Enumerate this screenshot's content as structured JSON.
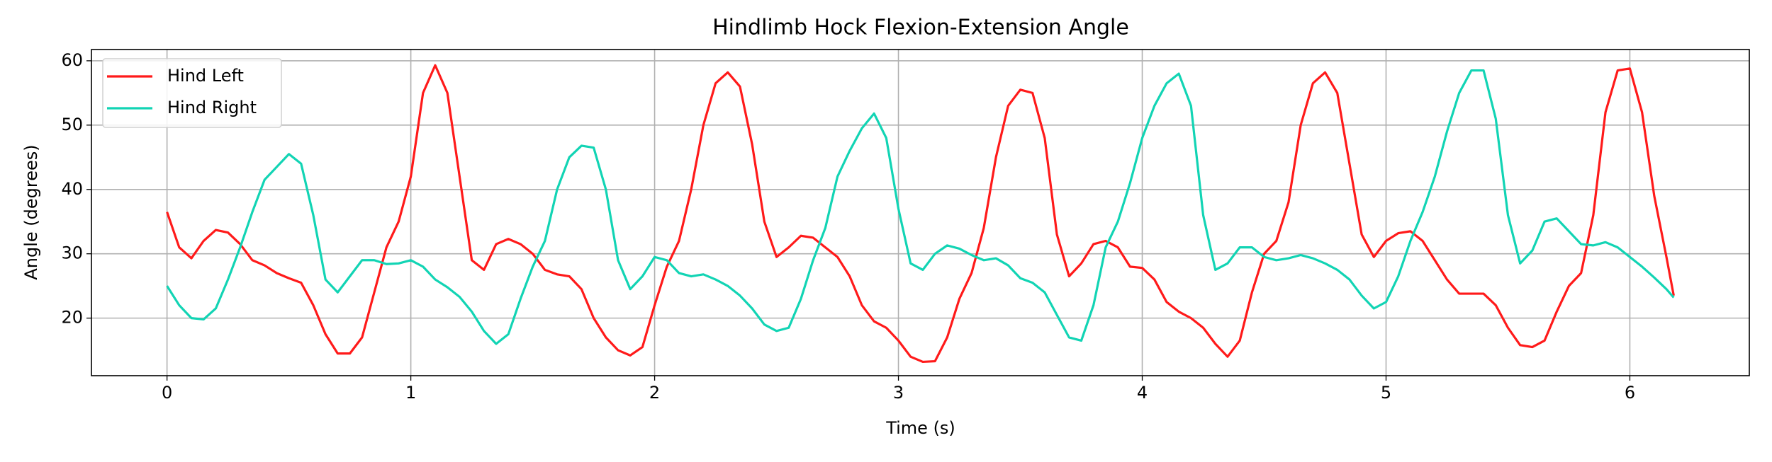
{
  "chart_data": {
    "type": "line",
    "title": "Hindlimb Hock Flexion-Extension Angle",
    "x_label": "Time (s)",
    "y_label": "Angle (degrees)",
    "x": [
      0,
      0.05,
      0.1,
      0.15,
      0.2,
      0.25,
      0.3,
      0.35,
      0.4,
      0.45,
      0.5,
      0.55,
      0.6,
      0.65,
      0.7,
      0.75,
      0.8,
      0.85,
      0.9,
      0.95,
      1.0,
      1.05,
      1.1,
      1.15,
      1.2,
      1.25,
      1.3,
      1.35,
      1.4,
      1.45,
      1.5,
      1.55,
      1.6,
      1.65,
      1.7,
      1.75,
      1.8,
      1.85,
      1.9,
      1.95,
      2.0,
      2.05,
      2.1,
      2.15,
      2.2,
      2.25,
      2.3,
      2.35,
      2.4,
      2.45,
      2.5,
      2.55,
      2.6,
      2.65,
      2.7,
      2.75,
      2.8,
      2.85,
      2.9,
      2.95,
      3.0,
      3.05,
      3.1,
      3.15,
      3.2,
      3.25,
      3.3,
      3.35,
      3.4,
      3.45,
      3.5,
      3.55,
      3.6,
      3.65,
      3.7,
      3.75,
      3.8,
      3.85,
      3.9,
      3.95,
      4.0,
      4.05,
      4.1,
      4.15,
      4.2,
      4.25,
      4.3,
      4.35,
      4.4,
      4.45,
      4.5,
      4.55,
      4.6,
      4.65,
      4.7,
      4.75,
      4.8,
      4.85,
      4.9,
      4.95,
      5.0,
      5.05,
      5.1,
      5.15,
      5.2,
      5.25,
      5.3,
      5.35,
      5.4,
      5.45,
      5.5,
      5.55,
      5.6,
      5.65,
      5.7,
      5.75,
      5.8,
      5.85,
      5.9,
      5.95,
      6.0,
      6.05,
      6.1,
      6.15,
      6.18
    ],
    "series": [
      {
        "name": "Hind Left",
        "color": "#ff1a1a",
        "values": [
          36.5,
          31,
          29.3,
          32,
          33.7,
          33.3,
          31.5,
          29,
          28.2,
          27,
          26.2,
          25.5,
          22,
          17.5,
          14.5,
          14.5,
          17,
          24,
          31,
          35,
          42,
          55,
          59.3,
          55,
          42,
          29,
          27.5,
          31.5,
          32.3,
          31.5,
          30,
          27.5,
          26.8,
          26.5,
          24.5,
          20,
          17,
          15,
          14.2,
          15.5,
          22,
          28,
          32,
          40,
          50,
          56.5,
          58.2,
          56,
          47,
          35,
          29.5,
          31,
          32.8,
          32.5,
          31,
          29.5,
          26.5,
          22,
          19.5,
          18.5,
          16.5,
          14,
          13.2,
          13.3,
          17,
          23,
          27,
          34,
          45,
          53,
          55.5,
          55,
          48,
          33,
          26.5,
          28.5,
          31.5,
          32,
          31,
          28,
          27.8,
          26,
          22.5,
          21,
          20,
          18.5,
          16,
          14,
          16.5,
          24,
          30,
          32,
          38,
          50,
          56.5,
          58.2,
          55,
          44,
          33,
          29.5,
          32,
          33.2,
          33.5,
          32,
          29,
          26,
          23.8,
          23.8,
          23.8,
          22,
          18.5,
          15.8,
          15.5,
          16.5,
          21,
          25,
          27,
          36,
          52,
          58.5,
          58.8,
          52,
          39,
          29.5,
          23.5
        ]
      },
      {
        "name": "Hind Right",
        "color": "#12d4b4",
        "values": [
          25,
          22,
          20,
          19.8,
          21.5,
          26,
          31,
          36.5,
          41.5,
          43.5,
          45.5,
          44,
          36,
          26,
          24,
          26.5,
          29,
          29,
          28.4,
          28.5,
          29,
          28,
          26,
          24.8,
          23.3,
          21,
          18,
          16,
          17.5,
          23,
          28,
          32,
          40,
          45,
          46.8,
          46.5,
          40,
          29,
          24.5,
          26.5,
          29.5,
          29,
          27,
          26.5,
          26.8,
          26,
          25,
          23.5,
          21.5,
          19,
          18,
          18.5,
          23,
          29,
          34,
          42,
          46,
          49.5,
          51.8,
          48,
          37,
          28.5,
          27.5,
          30,
          31.3,
          30.8,
          29.8,
          29,
          29.3,
          28.2,
          26.2,
          25.5,
          24,
          20.5,
          17,
          16.5,
          22,
          31,
          35,
          41,
          48,
          53,
          56.5,
          58,
          53,
          36,
          27.5,
          28.5,
          31,
          31,
          29.5,
          29,
          29.3,
          29.8,
          29.3,
          28.5,
          27.5,
          26,
          23.5,
          21.5,
          22.5,
          26.5,
          32,
          36.5,
          42,
          49,
          55,
          58.5,
          58.5,
          51,
          36,
          28.5,
          30.5,
          35,
          35.5,
          33.5,
          31.5,
          31.3,
          31.8,
          31,
          29.5,
          28,
          26.3,
          24.5,
          23.2
        ]
      }
    ],
    "xlim": [
      -0.31,
      6.49
    ],
    "ylim": [
      11.05,
      61.75
    ],
    "xticks": [
      0,
      1,
      2,
      3,
      4,
      5,
      6
    ],
    "yticks": [
      20,
      30,
      40,
      50,
      60
    ],
    "grid": true,
    "legend": "upper left"
  }
}
